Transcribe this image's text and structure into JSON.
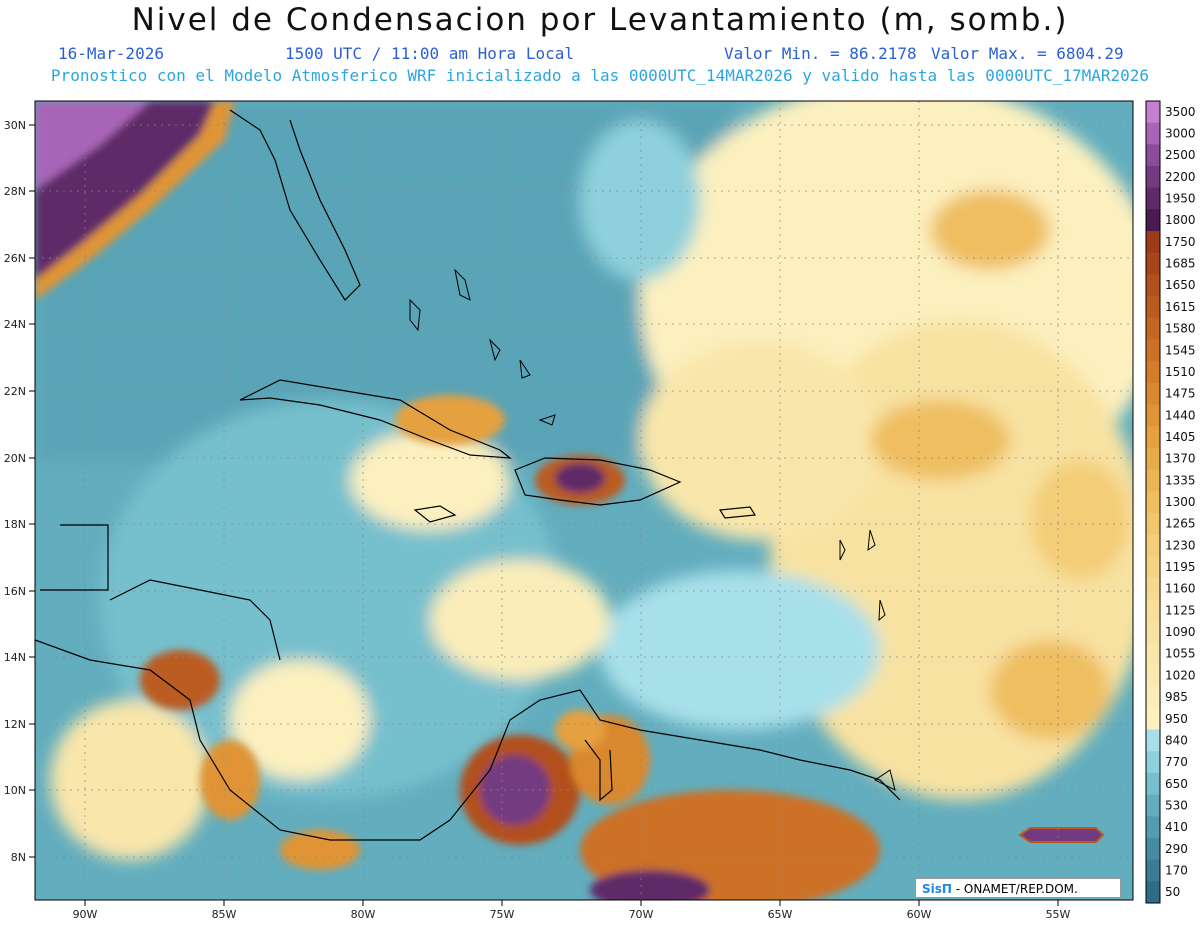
{
  "header": {
    "title": "Nivel de Condensacion por Levantamiento (m, somb.)",
    "date": "16-Mar-2026",
    "time": "1500 UTC / 11:00 am Hora Local",
    "valmin": "Valor Min. = 86.2178",
    "valmax": "Valor Max. = 6804.29",
    "forecast": "Pronostico con el Modelo Atmosferico WRF inicializado a las 0000UTC_14MAR2026 y valido hasta las  0000UTC_17MAR2026"
  },
  "map": {
    "lat_labels": [
      "30N",
      "28N",
      "26N",
      "24N",
      "22N",
      "20N",
      "18N",
      "16N",
      "14N",
      "12N",
      "10N",
      "8N"
    ],
    "lon_labels": [
      "90W",
      "85W",
      "80W",
      "75W",
      "70W",
      "65W",
      "60W",
      "55W"
    ]
  },
  "colorbar": {
    "levels": [
      "3500",
      "3000",
      "2500",
      "2200",
      "1950",
      "1800",
      "1750",
      "1685",
      "1650",
      "1615",
      "1580",
      "1545",
      "1510",
      "1475",
      "1440",
      "1405",
      "1370",
      "1335",
      "1300",
      "1265",
      "1230",
      "1195",
      "1160",
      "1125",
      "1090",
      "1055",
      "1020",
      "985",
      "950",
      "840",
      "770",
      "650",
      "530",
      "410",
      "290",
      "170",
      "50"
    ],
    "colors": [
      "#c47fd0",
      "#a865b8",
      "#8c4c9c",
      "#733a80",
      "#5e2a68",
      "#4a1b50",
      "#9e3a1a",
      "#a9451c",
      "#b2501e",
      "#bb5b20",
      "#c46622",
      "#cc7126",
      "#d37c2a",
      "#da882f",
      "#e09436",
      "#e5a03f",
      "#e9ab49",
      "#ecb554",
      "#efbe60",
      "#f1c66c",
      "#f3cd78",
      "#f5d384",
      "#f6d98f",
      "#f7de99",
      "#f8e2a2",
      "#f9e6aa",
      "#faeab2",
      "#fbedb9",
      "#fcf0bf",
      "#a8e0ea",
      "#8ed0dc",
      "#76bfcd",
      "#62adbe",
      "#539cb0",
      "#468ba2",
      "#3b7b95",
      "#2f6c88"
    ]
  },
  "logo": {
    "sis": "SisΠ",
    "rest": " - ONAMET/REP.DOM."
  }
}
